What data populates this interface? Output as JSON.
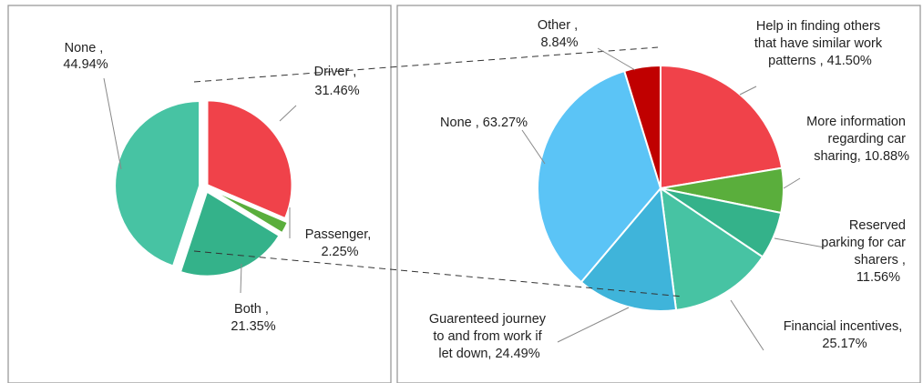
{
  "chart_data": [
    {
      "type": "pie",
      "slices": [
        {
          "label": "Driver ,",
          "value_label": "31.46%",
          "value": 31.46,
          "color": "#f0424a"
        },
        {
          "label": "Passenger,",
          "value_label": "2.25%",
          "value": 2.25,
          "color": "#5aae3c"
        },
        {
          "label": "Both ,",
          "value_label": "21.35%",
          "value": 21.35,
          "color": "#34b28a"
        },
        {
          "label": "None ,",
          "value_label": "44.94%",
          "value": 44.94,
          "color": "#47c3a3"
        }
      ]
    },
    {
      "type": "pie",
      "slices": [
        {
          "label": "Help in finding others that have similar work patterns , 41.50%",
          "value": 41.5,
          "color": "#f0424a"
        },
        {
          "label": "More information regarding car sharing, 10.88%",
          "value": 10.88,
          "color": "#5aae3c"
        },
        {
          "label": "Reserved parking for car sharers , 11.56%",
          "value": 11.56,
          "color": "#34b28a"
        },
        {
          "label": "Financial incentives, 25.17%",
          "value": 25.17,
          "color": "#47c3a3"
        },
        {
          "label": "Guarenteed journey to and from work if let down, 24.49%",
          "value": 24.49,
          "color": "#3fb4da"
        },
        {
          "label": "None , 63.27%",
          "value": 63.27,
          "color": "#5bc4f6"
        },
        {
          "label": "Other , 8.84%",
          "value": 8.84,
          "color": "#c00000"
        }
      ]
    }
  ]
}
